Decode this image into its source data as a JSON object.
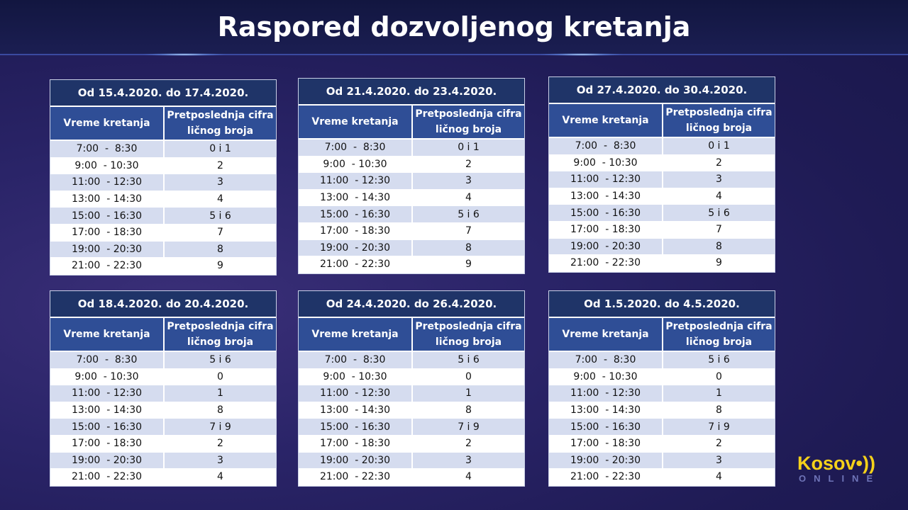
{
  "title": "Raspored dozvoljenog kretanja",
  "column_headers": {
    "time": "Vreme kretanja",
    "digit": "Pretposlednja cifra ličnog broja"
  },
  "times": [
    "7:00  -  8:30",
    "9:00  - 10:30",
    "11:00  - 12:30",
    "13:00  - 14:30",
    "15:00  - 16:30",
    "17:00  - 18:30",
    "19:00  - 20:30",
    "21:00  - 22:30"
  ],
  "tables": [
    {
      "caption": "Od 15.4.2020. do 17.4.2020.",
      "digits": [
        "0 i 1",
        "2",
        "3",
        "4",
        "5 i 6",
        "7",
        "8",
        "9"
      ]
    },
    {
      "caption": "Od 21.4.2020. do 23.4.2020.",
      "digits": [
        "0 i 1",
        "2",
        "3",
        "4",
        "5 i 6",
        "7",
        "8",
        "9"
      ]
    },
    {
      "caption": "Od 27.4.2020. do 30.4.2020.",
      "digits": [
        "0 i 1",
        "2",
        "3",
        "4",
        "5 i 6",
        "7",
        "8",
        "9"
      ]
    },
    {
      "caption": "Od 18.4.2020. do 20.4.2020.",
      "digits": [
        "5 i 6",
        "0",
        "1",
        "8",
        "7 i 9",
        "2",
        "3",
        "4"
      ]
    },
    {
      "caption": "Od 24.4.2020. do 26.4.2020.",
      "digits": [
        "5 i 6",
        "0",
        "1",
        "8",
        "7 i 9",
        "2",
        "3",
        "4"
      ]
    },
    {
      "caption": "Od 1.5.2020. do 4.5.2020.",
      "digits": [
        "5 i 6",
        "0",
        "1",
        "8",
        "7 i 9",
        "2",
        "3",
        "4"
      ]
    }
  ],
  "logo": {
    "brand": "Kosov•))",
    "sub": "ONLINE"
  }
}
